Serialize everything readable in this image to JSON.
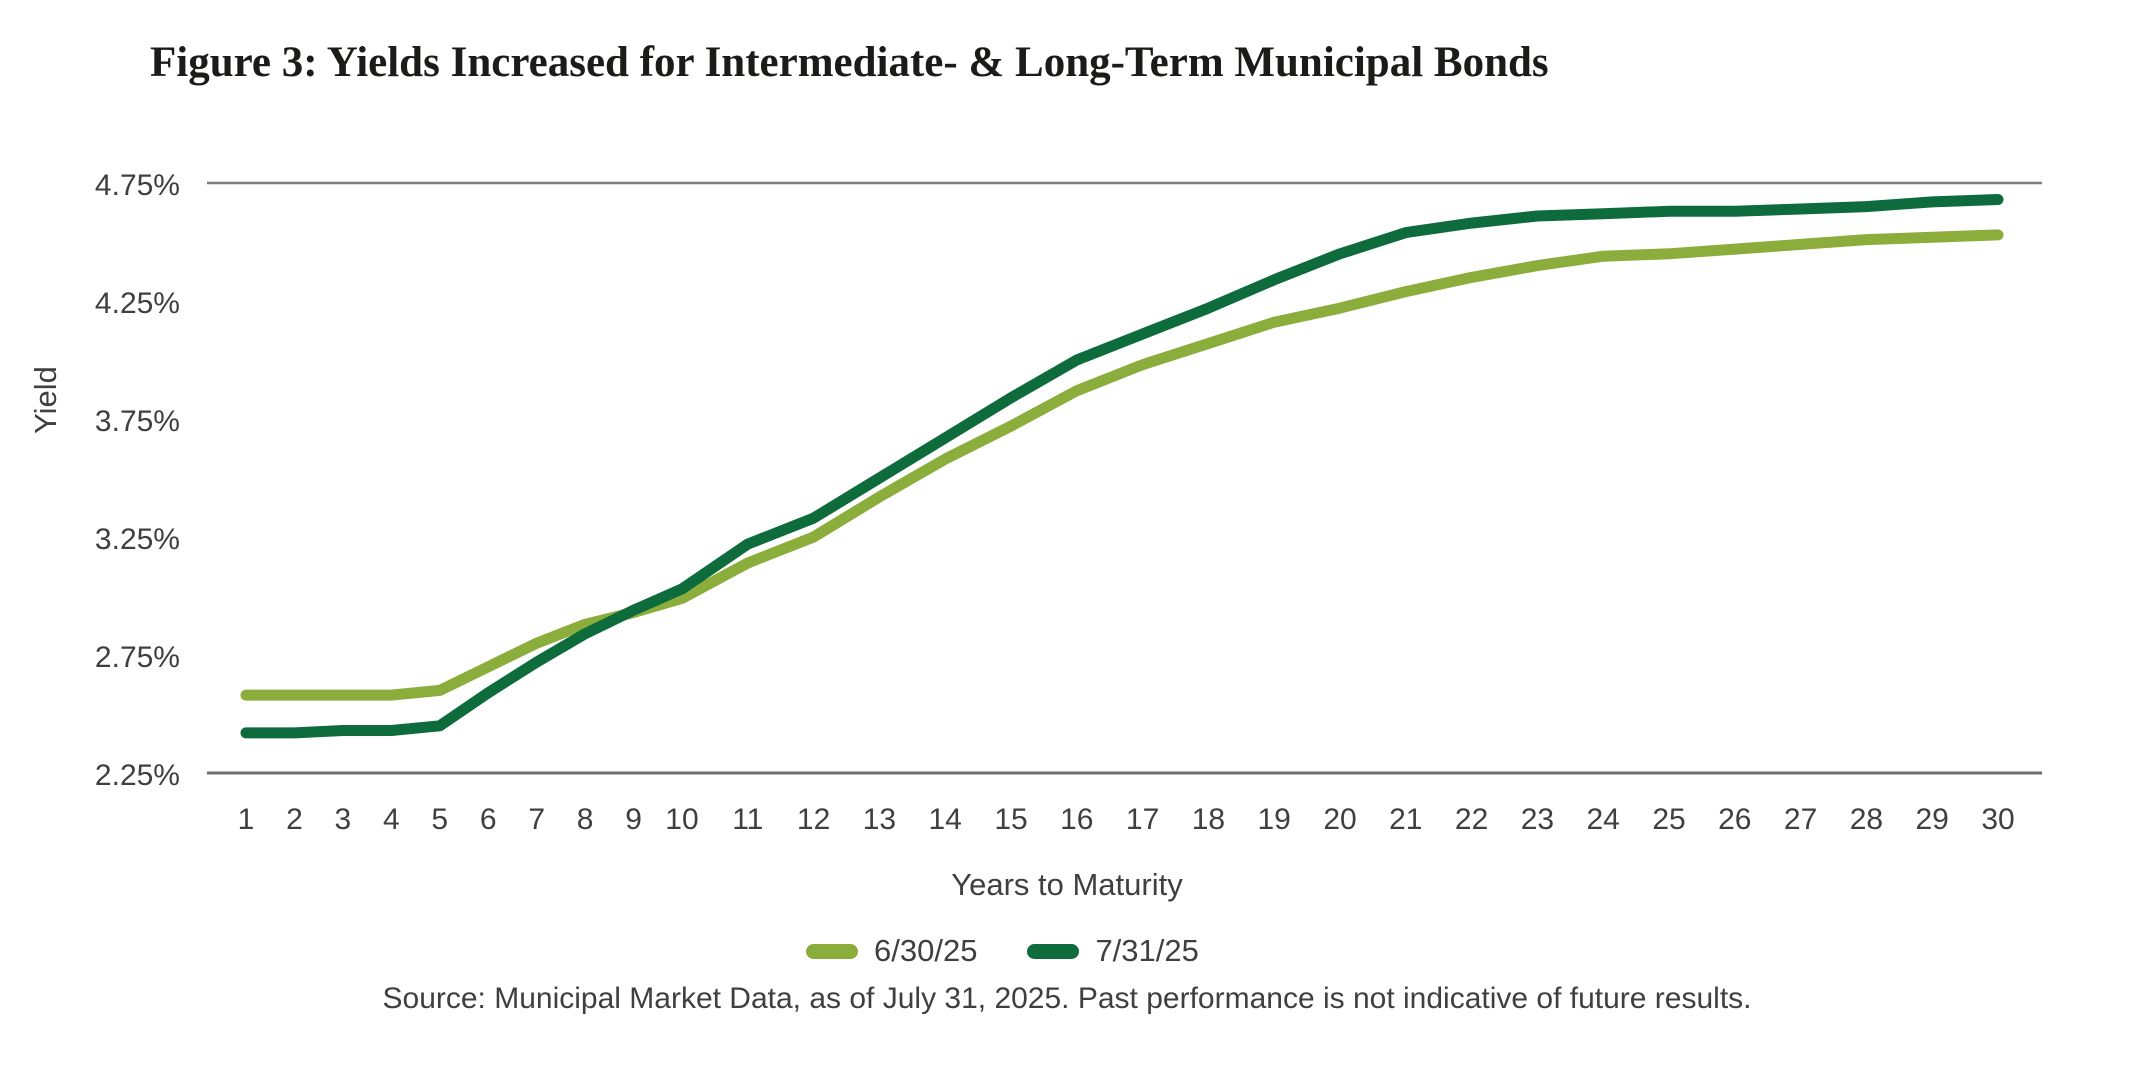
{
  "chart": {
    "figure_label": "Figure 3"
  },
  "chart_data": {
    "type": "line",
    "title": "Figure 3: Yields Increased for Intermediate- & Long-Term Municipal Bonds",
    "xlabel": "Years to Maturity",
    "ylabel": "Yield",
    "x": [
      1,
      2,
      3,
      4,
      5,
      6,
      7,
      8,
      9,
      10,
      11,
      12,
      13,
      14,
      15,
      16,
      17,
      18,
      19,
      20,
      21,
      22,
      23,
      24,
      25,
      26,
      27,
      28,
      29,
      30
    ],
    "y_ticks": [
      "4.75%",
      "4.25%",
      "3.75%",
      "3.25%",
      "2.75%",
      "2.25%"
    ],
    "ylim": [
      2.25,
      4.75
    ],
    "grid": "horizontal line at 4.75% and baseline at 2.25% only",
    "legend_position": "bottom-center",
    "axis_color": "#6e6e6e",
    "gridline_color": "#7d7d7d",
    "tick_text_color": "#3f3f3f",
    "series": [
      {
        "name": "6/30/25",
        "color": "#8bad3b",
        "values": [
          2.58,
          2.58,
          2.58,
          2.58,
          2.6,
          2.7,
          2.8,
          2.88,
          2.93,
          2.99,
          3.14,
          3.25,
          3.42,
          3.58,
          3.72,
          3.87,
          3.98,
          4.07,
          4.16,
          4.22,
          4.29,
          4.35,
          4.4,
          4.44,
          4.45,
          4.47,
          4.49,
          4.51,
          4.52,
          4.53
        ]
      },
      {
        "name": "7/31/25",
        "color": "#0e6b3c",
        "values": [
          2.42,
          2.42,
          2.43,
          2.43,
          2.45,
          2.59,
          2.72,
          2.84,
          2.94,
          3.03,
          3.22,
          3.33,
          3.5,
          3.67,
          3.84,
          4.0,
          4.11,
          4.22,
          4.34,
          4.45,
          4.54,
          4.58,
          4.61,
          4.62,
          4.63,
          4.63,
          4.64,
          4.65,
          4.67,
          4.68
        ]
      }
    ],
    "source": "Source: Municipal Market Data, as of July 31, 2025. Past performance is not indicative of future results."
  }
}
